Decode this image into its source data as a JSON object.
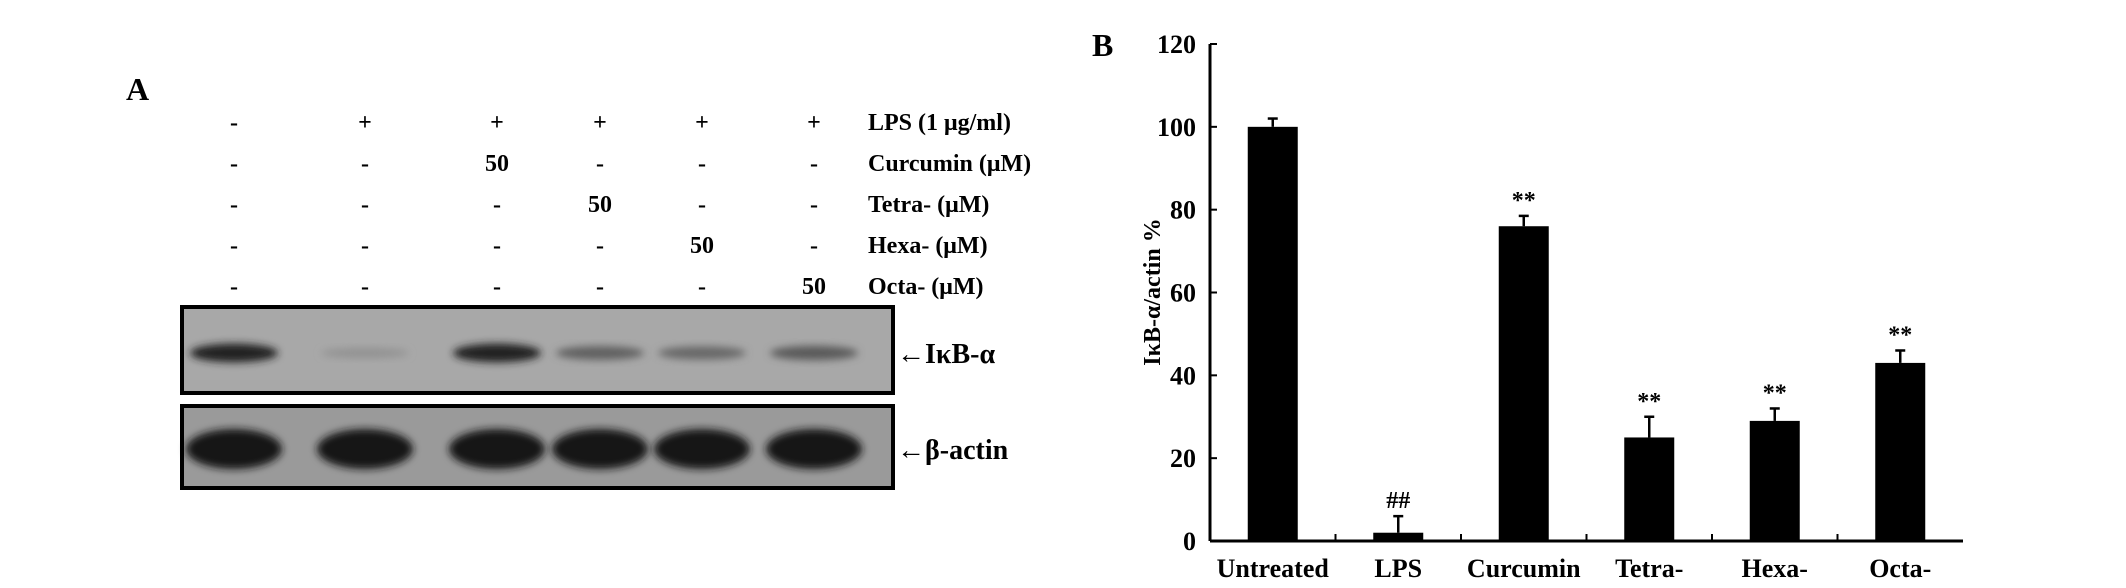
{
  "panel_a": {
    "label": "A",
    "treatment_rows": [
      {
        "label": "LPS (1 μg/ml)",
        "values": [
          "-",
          "+",
          "+",
          "+",
          "+",
          "+"
        ]
      },
      {
        "label": "Curcumin (μM)",
        "values": [
          "-",
          "-",
          "50",
          "-",
          "-",
          "-"
        ]
      },
      {
        "label": "Tetra- (μM)",
        "values": [
          "-",
          "-",
          "-",
          "50",
          "-",
          "-"
        ]
      },
      {
        "label": "Hexa- (μM)",
        "values": [
          "-",
          "-",
          "-",
          "-",
          "50",
          "-"
        ]
      },
      {
        "label": "Octa- (μM)",
        "values": [
          "-",
          "-",
          "-",
          "-",
          "-",
          "50"
        ]
      }
    ],
    "blots": [
      {
        "label": "←IκB-α",
        "band_intensity": [
          0.9,
          0.1,
          0.9,
          0.45,
          0.4,
          0.5
        ]
      },
      {
        "label": "←β-actin",
        "band_intensity": [
          1,
          1,
          1,
          1,
          1,
          1
        ]
      }
    ]
  },
  "chart_data": {
    "type": "bar",
    "panel_label": "B",
    "categories": [
      "Untreated",
      "LPS",
      "Curcumin",
      "Tetra-",
      "Hexa-",
      "Octa-"
    ],
    "values": [
      100,
      2,
      76,
      25,
      29,
      43
    ],
    "errors": [
      2,
      4,
      2.5,
      5,
      3,
      3
    ],
    "annotations": [
      "",
      "##",
      "**",
      "**",
      "**",
      "**"
    ],
    "xlabel": "",
    "ylabel": "IκB-α/actin %",
    "ylim": [
      0,
      120
    ],
    "yticks": [
      0,
      20,
      40,
      60,
      80,
      100,
      120
    ],
    "grid": false,
    "bar_color": "#000000"
  }
}
